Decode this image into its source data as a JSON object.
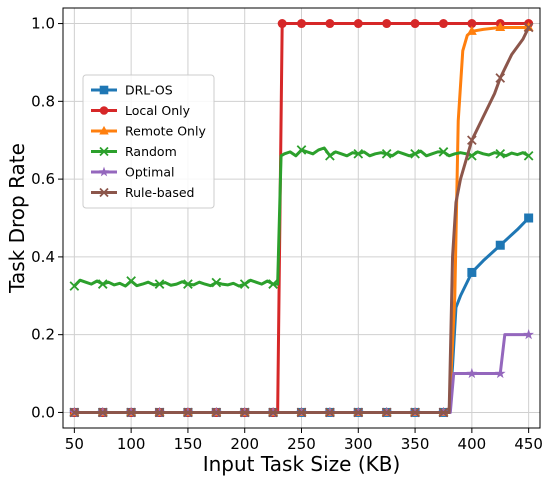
{
  "chart_data": {
    "type": "line",
    "xlabel": "Input Task Size (KB)",
    "ylabel": "Task Drop Rate",
    "xlim": [
      40,
      460
    ],
    "ylim": [
      -0.04,
      1.04
    ],
    "xticks": [
      50,
      100,
      150,
      200,
      250,
      300,
      350,
      400,
      450
    ],
    "yticks": [
      0.0,
      0.2,
      0.4,
      0.6,
      0.8,
      1.0
    ],
    "grid": true,
    "legend_position": "left-center",
    "series": [
      {
        "name": "DRL-OS",
        "color": "#1f77b4",
        "marker": "square",
        "x": [
          50,
          75,
          100,
          125,
          150,
          175,
          200,
          225,
          250,
          275,
          300,
          325,
          350,
          375,
          380,
          383,
          386,
          390,
          395,
          400,
          410,
          425,
          440,
          450
        ],
        "y": [
          0,
          0,
          0,
          0,
          0,
          0,
          0,
          0,
          0,
          0,
          0,
          0,
          0,
          0,
          0,
          0.12,
          0.27,
          0.3,
          0.33,
          0.36,
          0.39,
          0.43,
          0.47,
          0.5
        ],
        "marker_x": [
          50,
          75,
          100,
          125,
          150,
          175,
          200,
          225,
          250,
          275,
          300,
          325,
          350,
          375,
          400,
          425,
          450
        ]
      },
      {
        "name": "Local Only",
        "color": "#d62728",
        "marker": "circle",
        "x": [
          50,
          75,
          100,
          125,
          150,
          175,
          200,
          225,
          229,
          233,
          250,
          275,
          300,
          325,
          350,
          375,
          400,
          425,
          450
        ],
        "y": [
          0,
          0,
          0,
          0,
          0,
          0,
          0,
          0,
          0,
          1.0,
          1.0,
          1.0,
          1.0,
          1.0,
          1.0,
          1.0,
          1.0,
          1.0,
          1.0
        ],
        "marker_x": [
          50,
          75,
          100,
          125,
          150,
          175,
          200,
          225,
          233,
          250,
          275,
          300,
          325,
          350,
          375,
          400,
          425,
          450
        ]
      },
      {
        "name": "Remote Only",
        "color": "#ff7f0e",
        "marker": "triangle",
        "x": [
          50,
          75,
          100,
          125,
          150,
          175,
          200,
          225,
          250,
          275,
          300,
          325,
          350,
          375,
          380,
          385,
          388,
          392,
          396,
          400,
          410,
          425,
          450
        ],
        "y": [
          0,
          0,
          0,
          0,
          0,
          0,
          0,
          0,
          0,
          0,
          0,
          0,
          0,
          0,
          0,
          0.3,
          0.75,
          0.93,
          0.97,
          0.98,
          0.985,
          0.99,
          0.99
        ],
        "marker_x": [
          50,
          75,
          100,
          125,
          150,
          175,
          200,
          225,
          250,
          275,
          300,
          325,
          350,
          375,
          400,
          425,
          450
        ]
      },
      {
        "name": "Random",
        "color": "#2ca02c",
        "marker": "x",
        "x": [
          50,
          55,
          60,
          65,
          70,
          75,
          80,
          85,
          90,
          95,
          100,
          105,
          110,
          115,
          120,
          125,
          130,
          135,
          140,
          145,
          150,
          155,
          160,
          165,
          170,
          175,
          180,
          185,
          190,
          195,
          200,
          205,
          210,
          215,
          220,
          225,
          229,
          232,
          235,
          240,
          245,
          250,
          255,
          260,
          265,
          270,
          275,
          280,
          285,
          290,
          295,
          300,
          305,
          310,
          315,
          320,
          325,
          330,
          335,
          340,
          345,
          350,
          355,
          360,
          365,
          370,
          375,
          380,
          385,
          390,
          395,
          400,
          405,
          410,
          415,
          420,
          425,
          430,
          435,
          440,
          445,
          450
        ],
        "y": [
          0.325,
          0.34,
          0.335,
          0.33,
          0.338,
          0.33,
          0.335,
          0.328,
          0.332,
          0.325,
          0.338,
          0.326,
          0.33,
          0.335,
          0.328,
          0.33,
          0.334,
          0.327,
          0.33,
          0.336,
          0.33,
          0.328,
          0.335,
          0.33,
          0.326,
          0.334,
          0.33,
          0.328,
          0.332,
          0.325,
          0.33,
          0.34,
          0.335,
          0.33,
          0.338,
          0.33,
          0.33,
          0.66,
          0.665,
          0.67,
          0.66,
          0.675,
          0.67,
          0.665,
          0.675,
          0.68,
          0.66,
          0.67,
          0.665,
          0.66,
          0.668,
          0.665,
          0.67,
          0.66,
          0.665,
          0.668,
          0.665,
          0.66,
          0.67,
          0.665,
          0.66,
          0.665,
          0.672,
          0.66,
          0.665,
          0.67,
          0.67,
          0.66,
          0.665,
          0.668,
          0.665,
          0.66,
          0.67,
          0.665,
          0.662,
          0.668,
          0.665,
          0.66,
          0.667,
          0.663,
          0.668,
          0.66
        ],
        "marker_x": [
          50,
          75,
          100,
          125,
          150,
          175,
          200,
          225,
          250,
          275,
          300,
          325,
          350,
          375,
          400,
          425,
          450
        ]
      },
      {
        "name": "Optimal",
        "color": "#9467bd",
        "marker": "star",
        "x": [
          50,
          75,
          100,
          125,
          150,
          175,
          200,
          225,
          250,
          275,
          300,
          325,
          350,
          375,
          381,
          384,
          400,
          425,
          429,
          450
        ],
        "y": [
          0,
          0,
          0,
          0,
          0,
          0,
          0,
          0,
          0,
          0,
          0,
          0,
          0,
          0,
          0,
          0.1,
          0.1,
          0.1,
          0.2,
          0.2
        ],
        "marker_x": [
          50,
          75,
          100,
          125,
          150,
          175,
          200,
          225,
          250,
          275,
          300,
          325,
          350,
          375,
          400,
          425,
          450
        ]
      },
      {
        "name": "Rule-based",
        "color": "#8c564b",
        "marker": "x",
        "x": [
          50,
          75,
          100,
          125,
          150,
          175,
          200,
          225,
          250,
          275,
          300,
          325,
          350,
          375,
          380,
          383,
          386,
          390,
          395,
          400,
          405,
          410,
          415,
          420,
          425,
          430,
          435,
          440,
          445,
          450
        ],
        "y": [
          0,
          0,
          0,
          0,
          0,
          0,
          0,
          0,
          0,
          0,
          0,
          0,
          0,
          0,
          0,
          0.4,
          0.54,
          0.6,
          0.65,
          0.7,
          0.73,
          0.76,
          0.79,
          0.82,
          0.86,
          0.89,
          0.92,
          0.94,
          0.96,
          0.99
        ],
        "marker_x": [
          50,
          75,
          100,
          125,
          150,
          175,
          200,
          225,
          250,
          275,
          300,
          325,
          350,
          375,
          400,
          425,
          450
        ]
      }
    ]
  }
}
